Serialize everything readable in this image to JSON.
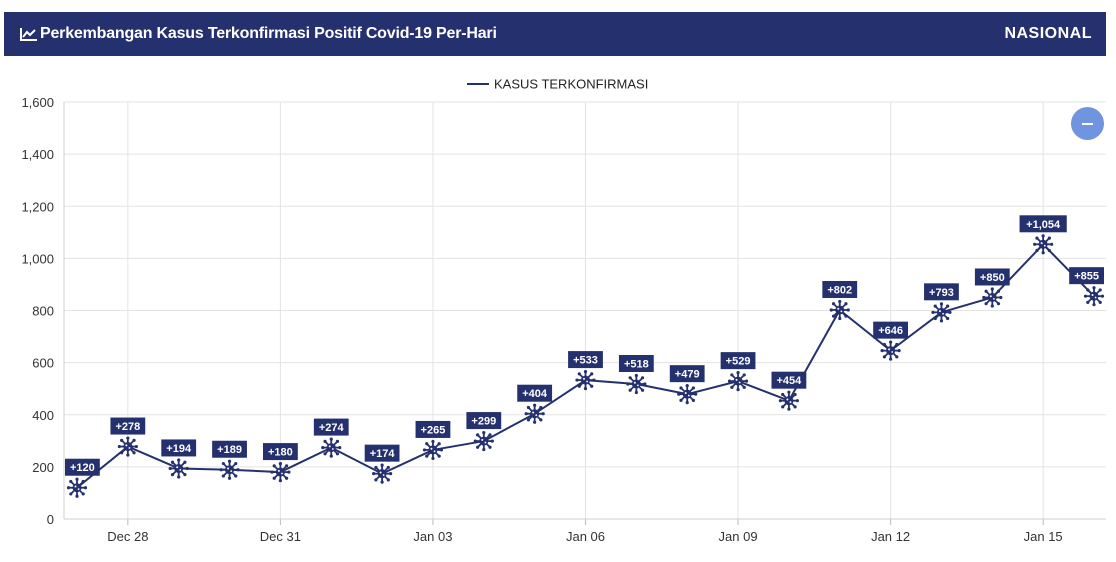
{
  "header": {
    "title": "Perkembangan Kasus Terkonfirmasi Positif Covid-19 Per-Hari",
    "scope": "NASIONAL",
    "icon": "line-chart-icon"
  },
  "zoom_button": {
    "icon": "minus-icon"
  },
  "colors": {
    "header_bg": "#25306e",
    "series": "#25306e",
    "label_bg": "#25306e",
    "zoom_button": "#6f95e0",
    "grid": "#e3e3e3"
  },
  "chart_data": {
    "type": "line",
    "title": "",
    "xlabel": "",
    "ylabel": "",
    "ylim": [
      0,
      1600
    ],
    "yticks": [
      0,
      200,
      400,
      600,
      800,
      1000,
      1200,
      1400,
      1600
    ],
    "ytick_labels": [
      "0",
      "200",
      "400",
      "600",
      "800",
      "1,000",
      "1,200",
      "1,400",
      "1,600"
    ],
    "xticks": [
      {
        "date": "2020-12-28",
        "label": "Dec 28"
      },
      {
        "date": "2020-12-31",
        "label": "Dec 31"
      },
      {
        "date": "2021-01-03",
        "label": "Jan 03"
      },
      {
        "date": "2021-01-06",
        "label": "Jan 06"
      },
      {
        "date": "2021-01-09",
        "label": "Jan 09"
      },
      {
        "date": "2021-01-12",
        "label": "Jan 12"
      },
      {
        "date": "2021-01-15",
        "label": "Jan 15"
      }
    ],
    "grid": true,
    "legend_position": "top-center",
    "x": [
      "2020-12-27",
      "2020-12-28",
      "2020-12-29",
      "2020-12-30",
      "2020-12-31",
      "2021-01-01",
      "2021-01-02",
      "2021-01-03",
      "2021-01-04",
      "2021-01-05",
      "2021-01-06",
      "2021-01-07",
      "2021-01-08",
      "2021-01-09",
      "2021-01-10",
      "2021-01-11",
      "2021-01-12",
      "2021-01-13",
      "2021-01-14",
      "2021-01-15",
      "2021-01-16"
    ],
    "series": [
      {
        "name": "KASUS TERKONFIRMASI",
        "values": [
          120,
          278,
          194,
          189,
          180,
          274,
          174,
          265,
          299,
          404,
          533,
          518,
          479,
          529,
          454,
          802,
          646,
          793,
          850,
          1054,
          855
        ],
        "labels": [
          "+120",
          "+278",
          "+194",
          "+189",
          "+180",
          "+274",
          "+174",
          "+265",
          "+299",
          "+404",
          "+533",
          "+518",
          "+479",
          "+529",
          "+454",
          "+802",
          "+646",
          "+793",
          "+850",
          "+1,054",
          "+855"
        ]
      }
    ]
  }
}
